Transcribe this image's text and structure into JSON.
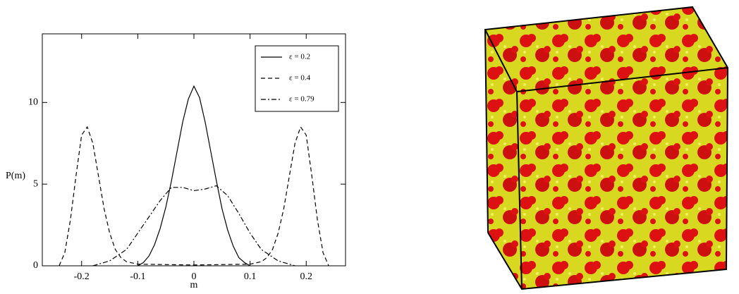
{
  "chart_data": {
    "type": "line",
    "x_label": "m",
    "y_label": "P(m)",
    "xlim": [
      -0.27,
      0.27
    ],
    "xticks": [
      -0.2,
      -0.1,
      0,
      0.1,
      0.2
    ],
    "ylim": [
      0,
      14.2
    ],
    "yticks": [
      0,
      5,
      10
    ],
    "grid": false,
    "legend": "upper right",
    "series": [
      {
        "name": "ε = 0.2",
        "color": "#000000",
        "dash": "solid",
        "x": [
          -0.1,
          -0.09,
          -0.08,
          -0.07,
          -0.06,
          -0.05,
          -0.04,
          -0.03,
          -0.02,
          -0.01,
          0,
          0.01,
          0.02,
          0.03,
          0.04,
          0.05,
          0.06,
          0.07,
          0.08,
          0.09,
          0.1
        ],
        "values": [
          0,
          0.2,
          0.6,
          1.3,
          2.3,
          3.6,
          5.2,
          7.0,
          8.8,
          10.2,
          11.0,
          10.3,
          8.8,
          7.0,
          5.2,
          3.5,
          2.2,
          1.2,
          0.5,
          0.2,
          0
        ]
      },
      {
        "name": "ε = 0.4",
        "color": "#000000",
        "dash": "dashed",
        "x": [
          -0.24,
          -0.23,
          -0.22,
          -0.21,
          -0.2,
          -0.19,
          -0.18,
          -0.17,
          -0.16,
          -0.15,
          -0.14,
          -0.13,
          -0.12,
          -0.1,
          0,
          0.1,
          0.12,
          0.13,
          0.14,
          0.15,
          0.16,
          0.17,
          0.18,
          0.19,
          0.2,
          0.21,
          0.22,
          0.23,
          0.24
        ],
        "values": [
          0,
          0.8,
          2.8,
          5.5,
          8.0,
          8.5,
          7.5,
          5.5,
          3.5,
          2.0,
          1.0,
          0.5,
          0.25,
          0.1,
          0.05,
          0.1,
          0.25,
          0.5,
          1.0,
          2.0,
          3.5,
          5.5,
          7.5,
          8.5,
          8.0,
          5.5,
          2.8,
          0.8,
          0
        ]
      },
      {
        "name": "ε = 0.79",
        "color": "#000000",
        "dash": "dashdot",
        "x": [
          -0.18,
          -0.15,
          -0.12,
          -0.1,
          -0.08,
          -0.06,
          -0.04,
          -0.02,
          0,
          0.02,
          0.04,
          0.06,
          0.08,
          0.1,
          0.12,
          0.15,
          0.18
        ],
        "values": [
          0,
          0.3,
          1.0,
          2.0,
          3.0,
          4.0,
          4.8,
          4.8,
          4.6,
          4.7,
          4.9,
          4.3,
          3.2,
          2.0,
          1.0,
          0.3,
          0
        ]
      }
    ]
  }
}
